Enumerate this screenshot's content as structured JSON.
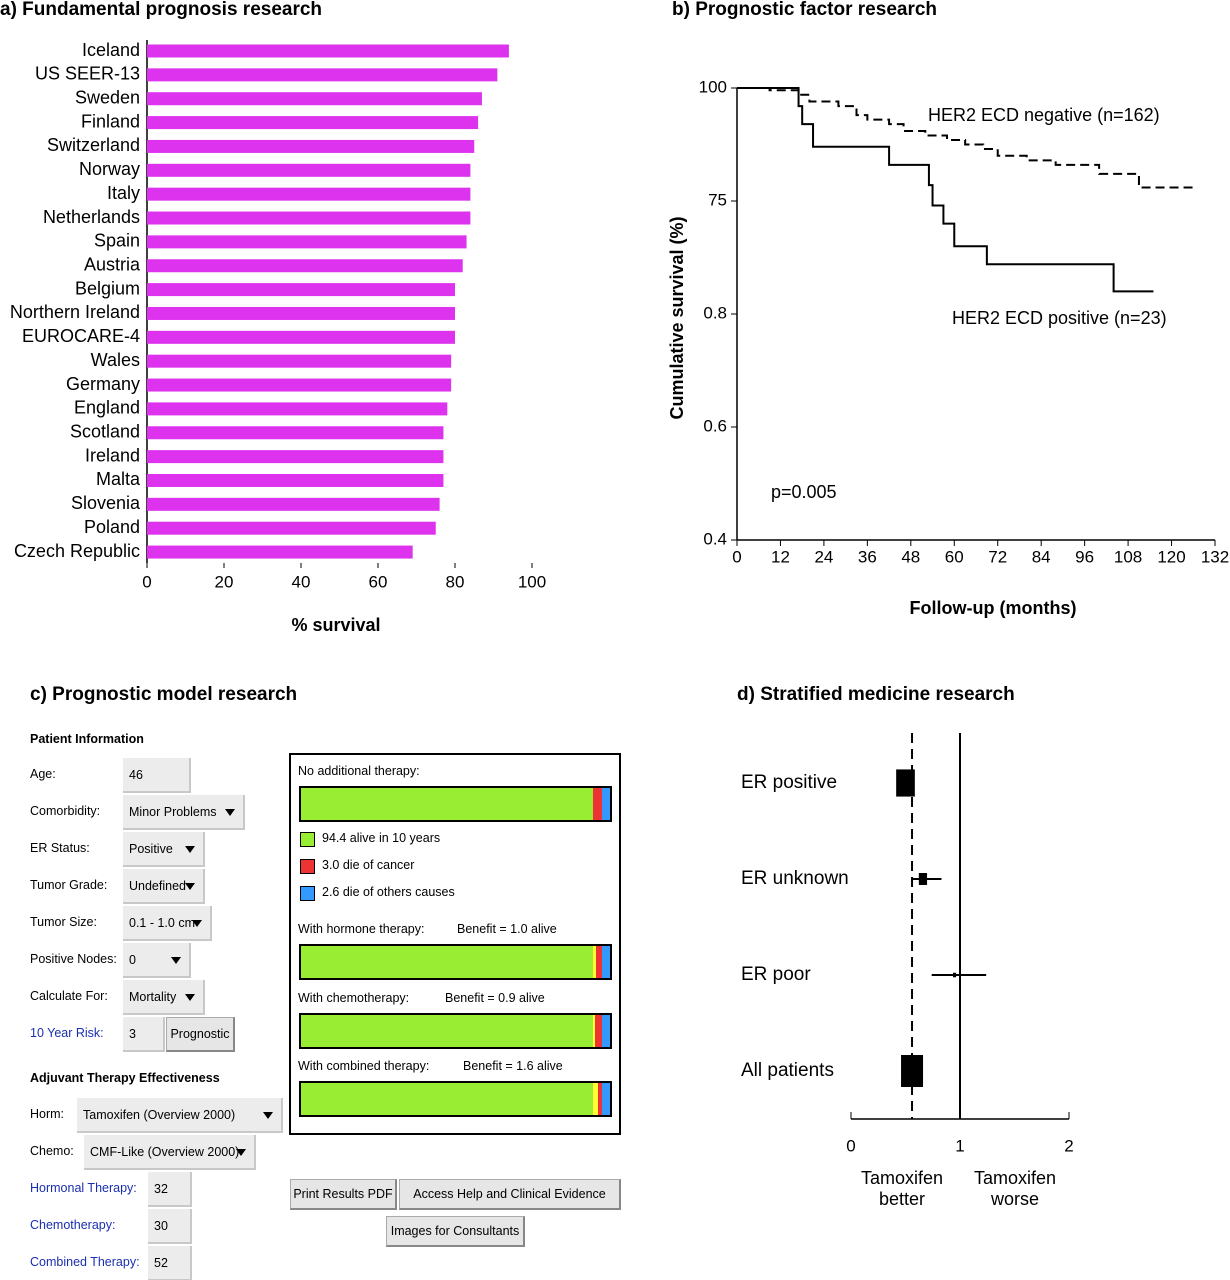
{
  "chart_data": [
    {
      "type": "bar",
      "title": "a) Fundamental prognosis research",
      "categories": [
        "Iceland",
        "US SEER-13",
        "Sweden",
        "Finland",
        "Switzerland",
        "Norway",
        "Italy",
        "Netherlands",
        "Spain",
        "Austria",
        "Belgium",
        "Northern Ireland",
        "EUROCARE-4",
        "Wales",
        "Germany",
        "England",
        "Scotland",
        "Ireland",
        "Malta",
        "Slovenia",
        "Poland",
        "Czech Republic"
      ],
      "values": [
        94,
        91,
        87,
        86,
        85,
        84,
        84,
        84,
        83,
        82,
        80,
        80,
        80,
        79,
        79,
        78,
        77,
        77,
        77,
        76,
        75,
        69
      ],
      "color": "#dd33ee",
      "xlim": [
        0,
        100
      ],
      "xticks": [
        0,
        20,
        40,
        60,
        80,
        100
      ],
      "xlabel": "% survival"
    },
    {
      "type": "line",
      "title": "b) Prognostic factor research",
      "series": [
        {
          "name": "HER2 ECD negative (n=162)",
          "color": "#000000",
          "dashed": true,
          "x": [
            0,
            9,
            9,
            17,
            17,
            20,
            20,
            28,
            28,
            33,
            33,
            36,
            36,
            42,
            42,
            46,
            46,
            52,
            52,
            58,
            58,
            63,
            63,
            68,
            68,
            72,
            72,
            80,
            80,
            88,
            88,
            100,
            100,
            111,
            111,
            127
          ],
          "values": [
            100,
            100,
            99.5,
            99.5,
            98.5,
            98.5,
            97,
            97,
            96,
            96,
            94,
            94,
            93,
            93,
            92,
            92,
            90.5,
            90.5,
            89.5,
            89.5,
            88.5,
            88.5,
            87.5,
            87.5,
            86.5,
            86.5,
            85,
            85,
            84,
            84,
            83,
            83,
            81,
            81,
            78,
            78
          ]
        },
        {
          "name": "HER2 ECD positive (n=23)",
          "color": "#000000",
          "dashed": false,
          "x": [
            0,
            17,
            17,
            18,
            18,
            21,
            21,
            42,
            42,
            53,
            53,
            54,
            54,
            57,
            57,
            60,
            60,
            69,
            69,
            104,
            104,
            115
          ],
          "values": [
            100,
            100,
            96,
            96,
            92,
            92,
            87,
            87,
            83,
            83,
            78.5,
            78.5,
            74,
            74,
            70,
            70,
            65,
            65,
            61,
            61,
            55,
            55
          ]
        }
      ],
      "xlim": [
        0,
        132
      ],
      "xticks": [
        0,
        12,
        24,
        36,
        48,
        60,
        72,
        84,
        96,
        108,
        120,
        132
      ],
      "ylim": [
        0,
        100
      ],
      "yticks": [
        100,
        75,
        {
          "value": 50,
          "label": "0.8"
        },
        {
          "value": 25,
          "label": "0.6"
        },
        {
          "value": 0,
          "label": "0.4"
        }
      ],
      "xlabel": "Follow-up (months)",
      "ylabel": "Cumulative survival (%)",
      "annotations": [
        "p=0.005"
      ]
    },
    {
      "type": "forest",
      "title": "d) Stratified medicine research",
      "categories": [
        "ER positive",
        "ER unknown",
        "ER poor",
        "All patients"
      ],
      "values": [
        0.5,
        0.66,
        0.95,
        0.56
      ],
      "ci_lower": [
        0.45,
        0.56,
        0.74,
        0.48
      ],
      "ci_upper": [
        0.58,
        0.83,
        1.24,
        0.64
      ],
      "weights": [
        72,
        14,
        2,
        100
      ],
      "color": "#000000",
      "xlim": [
        0,
        2
      ],
      "xticks": [
        0,
        1,
        2
      ],
      "reference_line": 1,
      "x_annotations": [
        "Tamoxifen better",
        "Tamoxifen worse"
      ]
    }
  ],
  "model_tool": {
    "title": "c) Prognostic model research",
    "patient_info": {
      "heading": "Patient Information",
      "fields": [
        {
          "label": "Age:",
          "value": "46",
          "kind": "input"
        },
        {
          "label": "Comorbidity:",
          "value": "Minor Problems",
          "kind": "select"
        },
        {
          "label": "ER Status:",
          "value": "Positive",
          "kind": "select"
        },
        {
          "label": "Tumor Grade:",
          "value": "Undefined",
          "kind": "select"
        },
        {
          "label": "Tumor Size:",
          "value": "0.1 - 1.0 cm",
          "kind": "select"
        },
        {
          "label": "Positive Nodes:",
          "value": "0",
          "kind": "select"
        },
        {
          "label": "Calculate For:",
          "value": "Mortality",
          "kind": "select"
        },
        {
          "label": "10 Year Risk:",
          "value": "3",
          "kind": "input",
          "link": true,
          "button": "Prognostic"
        }
      ]
    },
    "adjuvant": {
      "heading": "Adjuvant Therapy Effectiveness",
      "fields": [
        {
          "label": "Horm:",
          "value": "Tamoxifen (Overview 2000)",
          "kind": "select"
        },
        {
          "label": "Chemo:",
          "value": "CMF-Like (Overview 2000)",
          "kind": "select"
        },
        {
          "label": "Hormonal Therapy:",
          "value": "32",
          "kind": "input",
          "link": true
        },
        {
          "label": "Chemotherapy:",
          "value": "30",
          "kind": "input",
          "link": true
        },
        {
          "label": "Combined Therapy:",
          "value": "52",
          "kind": "input",
          "link": true
        }
      ]
    },
    "results": {
      "bars": [
        {
          "label": "No additional therapy:",
          "segments": [
            94.4,
            3.0,
            2.6
          ],
          "colors": [
            "#99ee33",
            "#ee3333",
            "#3399ff"
          ]
        },
        {
          "label": "With hormone therapy:",
          "benefit": "Benefit = 1.0 alive",
          "segments": [
            94.4,
            1.0,
            2.0,
            2.6
          ],
          "colors": [
            "#99ee33",
            "#ffff33",
            "#ee3333",
            "#3399ff"
          ]
        },
        {
          "label": "With chemotherapy:",
          "benefit": "Benefit = 0.9 alive",
          "segments": [
            94.4,
            0.9,
            2.1,
            2.6
          ],
          "colors": [
            "#99ee33",
            "#ffff33",
            "#ee3333",
            "#3399ff"
          ]
        },
        {
          "label": "With combined therapy:",
          "benefit": "Benefit = 1.6 alive",
          "segments": [
            94.4,
            1.6,
            1.4,
            2.6
          ],
          "colors": [
            "#99ee33",
            "#ffff33",
            "#ee3333",
            "#3399ff"
          ]
        }
      ],
      "legend": [
        {
          "text": "94.4 alive in 10 years",
          "color": "#99ee33"
        },
        {
          "text": "3.0 die of cancer",
          "color": "#ee3333"
        },
        {
          "text": "2.6 die of others causes",
          "color": "#3399ff"
        }
      ]
    },
    "buttons": [
      "Print Results PDF",
      "Access Help and Clinical Evidence",
      "Images for Consultants"
    ]
  }
}
